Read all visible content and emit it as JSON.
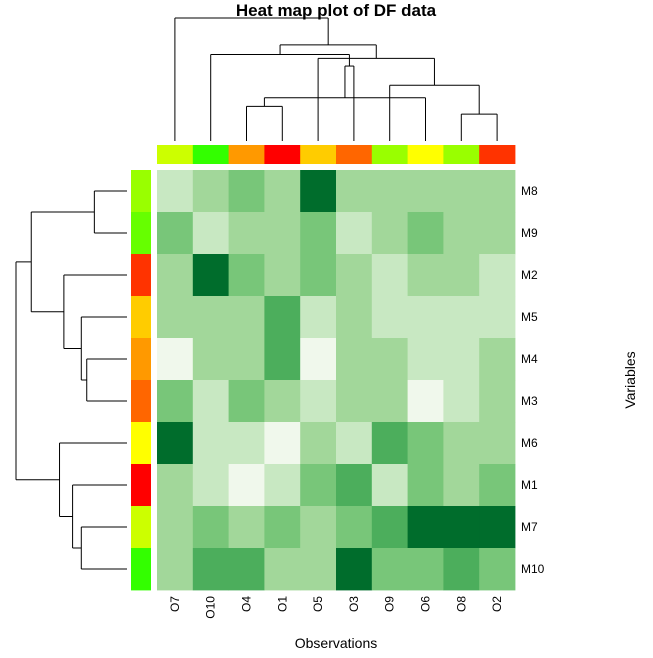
{
  "chart_data": {
    "type": "heatmap",
    "title": "Heat map plot of DF data",
    "xlabel": "Observations",
    "ylabel": "Variables",
    "columns": [
      "O7",
      "O10",
      "O4",
      "O1",
      "O5",
      "O3",
      "O9",
      "O6",
      "O8",
      "O2"
    ],
    "rows": [
      "M8",
      "M9",
      "M2",
      "M5",
      "M4",
      "M3",
      "M6",
      "M1",
      "M7",
      "M10"
    ],
    "values": [
      [
        2,
        3,
        4,
        3,
        7,
        3,
        3,
        3,
        3,
        3
      ],
      [
        4,
        2,
        3,
        3,
        4,
        2,
        3,
        4,
        3,
        3
      ],
      [
        3,
        7,
        4,
        3,
        4,
        3,
        2,
        3,
        3,
        2
      ],
      [
        3,
        3,
        3,
        5,
        2,
        3,
        2,
        2,
        2,
        2
      ],
      [
        1,
        3,
        3,
        5,
        1,
        3,
        3,
        2,
        2,
        3
      ],
      [
        4,
        2,
        4,
        3,
        2,
        3,
        3,
        1,
        2,
        3
      ],
      [
        7,
        2,
        2,
        1,
        3,
        2,
        5,
        4,
        3,
        3
      ],
      [
        3,
        2,
        1,
        2,
        4,
        5,
        2,
        4,
        3,
        4
      ],
      [
        3,
        4,
        3,
        4,
        3,
        4,
        5,
        7,
        7,
        7
      ],
      [
        3,
        5,
        5,
        3,
        3,
        7,
        4,
        4,
        5,
        4
      ]
    ],
    "color_scale": [
      "#ffffff",
      "#f0f8ec",
      "#c8e8c2",
      "#a2d79a",
      "#78c679",
      "#4cae5c",
      "#31a354",
      "#006d2c"
    ],
    "column_side_colors": [
      "#ccff00",
      "#33ff00",
      "#ff9900",
      "#ff0000",
      "#ffcc00",
      "#ff6600",
      "#99ff00",
      "#ffff00",
      "#99ff00",
      "#ff3300"
    ],
    "row_side_colors": [
      "#99ff00",
      "#66ff00",
      "#ff3300",
      "#ffcc00",
      "#ff9900",
      "#ff6600",
      "#ffff00",
      "#ff0000",
      "#ccff00",
      "#33ff00"
    ],
    "column_dendrogram": {
      "leaves": 10,
      "merges": [
        [
          2,
          3,
          0.36
        ],
        [
          8,
          9,
          0.28
        ],
        [
          7,
          10,
          0.45
        ],
        [
          6,
          11,
          0.58
        ],
        [
          5,
          12,
          0.78
        ],
        [
          4,
          13,
          0.86
        ],
        [
          1,
          14,
          0.9
        ],
        [
          15,
          16,
          1.0
        ],
        [
          0,
          17,
          1.28
        ]
      ]
    },
    "row_dendrogram": {
      "leaves": 10,
      "merges": [
        [
          0,
          1,
          0.3
        ],
        [
          4,
          5,
          0.37
        ],
        [
          3,
          11,
          0.42
        ],
        [
          2,
          12,
          0.58
        ],
        [
          10,
          13,
          0.88
        ],
        [
          8,
          9,
          0.42
        ],
        [
          7,
          15,
          0.5
        ],
        [
          6,
          16,
          0.62
        ],
        [
          14,
          17,
          1.02
        ]
      ]
    }
  }
}
